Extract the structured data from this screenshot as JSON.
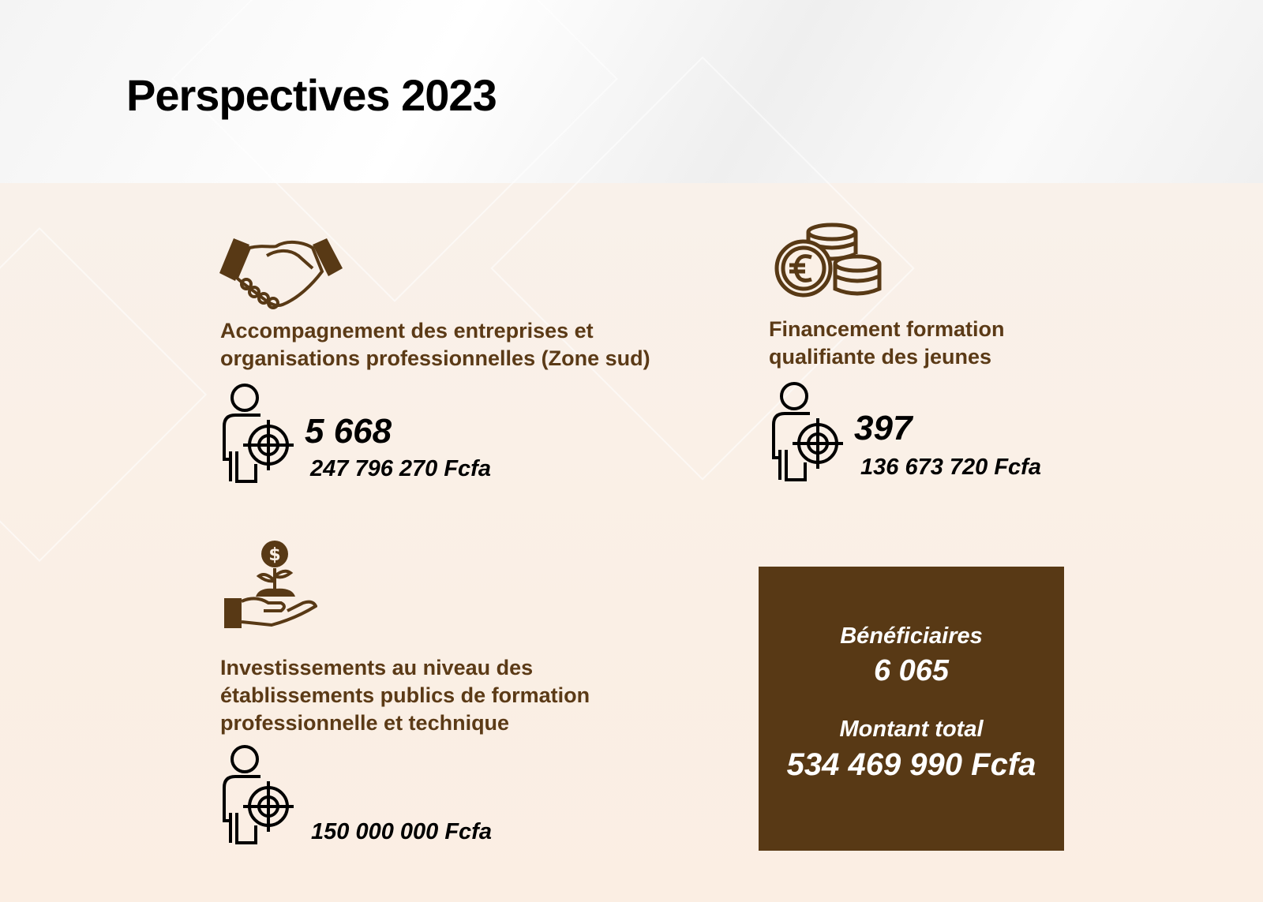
{
  "title": "Perspectives 2023",
  "colors": {
    "brown": "#583915",
    "label_brown": "#5b3a16",
    "background": "#fbf0e6"
  },
  "sections": [
    {
      "icon": "handshake-icon",
      "label_line1": "Accompagnement des entreprises et",
      "label_line2": "organisations professionnelles (Zone sud)",
      "beneficiaries": "5 668",
      "amount": "247 796 270 Fcfa"
    },
    {
      "icon": "coins-euro-icon",
      "label_line1": "Financement formation",
      "label_line2": "qualifiante des jeunes",
      "beneficiaries": "397",
      "amount": "136 673 720 Fcfa"
    },
    {
      "icon": "hand-plant-dollar-icon",
      "label_line1": "Investissements au niveau des",
      "label_line2": "établissements publics de formation",
      "label_line3": "professionnelle et technique",
      "amount": "150 000 000 Fcfa"
    }
  ],
  "summary": {
    "beneficiaries_label": "Bénéficiaires",
    "beneficiaries_value": "6 065",
    "total_label": "Montant total",
    "total_value": "534 469 990 Fcfa"
  }
}
